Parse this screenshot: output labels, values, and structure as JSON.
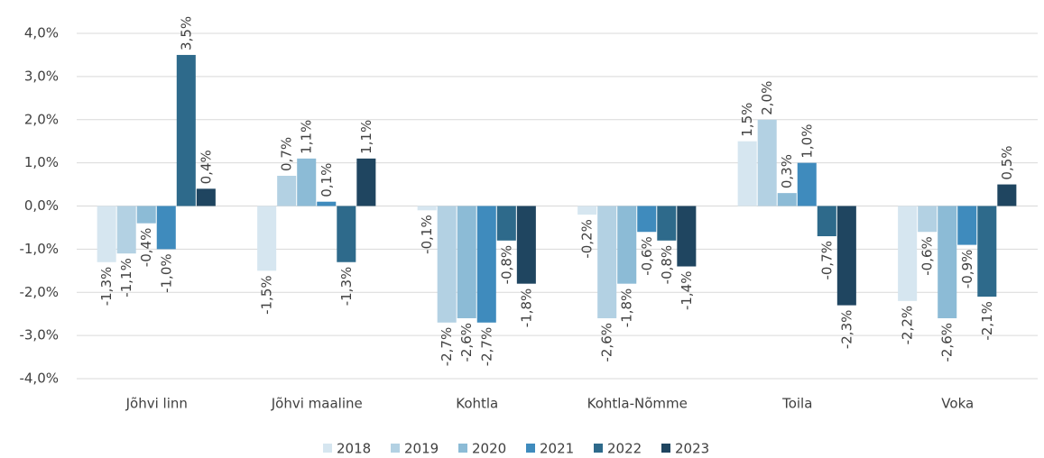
{
  "chart_data": {
    "type": "bar",
    "categories": [
      "Jõhvi linn",
      "Jõhvi maaline",
      "Kohtla",
      "Kohtla-Nõmme",
      "Toila",
      "Voka"
    ],
    "series": [
      {
        "name": "2018",
        "color": "#d6e6f0",
        "values": [
          -1.3,
          -1.5,
          -0.1,
          -0.2,
          1.5,
          -2.2
        ],
        "value_labels": [
          "-1,3%",
          "-1,5%",
          "-0,1%",
          "-0,2%",
          "1,5%",
          "-2,2%"
        ]
      },
      {
        "name": "2019",
        "color": "#b3d1e3",
        "values": [
          -1.1,
          0.7,
          -2.7,
          -2.6,
          2.0,
          -0.6
        ],
        "value_labels": [
          "-1,1%",
          "0,7%",
          "-2,7%",
          "-2,6%",
          "2,0%",
          "-0,6%"
        ]
      },
      {
        "name": "2020",
        "color": "#8cbbd6",
        "values": [
          -0.4,
          1.1,
          -2.6,
          -1.8,
          0.3,
          -2.6
        ],
        "value_labels": [
          "-0,4%",
          "1,1%",
          "-2,6%",
          "-1,8%",
          "0,3%",
          "-2,6%"
        ]
      },
      {
        "name": "2021",
        "color": "#3f8bbd",
        "values": [
          -1.0,
          0.1,
          -2.7,
          -0.6,
          1.0,
          -0.9
        ],
        "value_labels": [
          "-1,0%",
          "0,1%",
          "-2,7%",
          "-0,6%",
          "1,0%",
          "-0,9%"
        ]
      },
      {
        "name": "2022",
        "color": "#2e6a8b",
        "values": [
          3.5,
          -1.3,
          -0.8,
          -0.8,
          -0.7,
          -2.1
        ],
        "value_labels": [
          "3,5%",
          "-1,3%",
          "-0,8%",
          "-0,8%",
          "-0,7%",
          "-2,1%"
        ]
      },
      {
        "name": "2023",
        "color": "#1f4560",
        "values": [
          0.4,
          1.1,
          -1.8,
          -1.4,
          -2.3,
          0.5
        ],
        "value_labels": [
          "0,4%",
          "1,1%",
          "-1,8%",
          "-1,4%",
          "-2,3%",
          "0,5%"
        ]
      }
    ],
    "ylim": [
      -4,
      4
    ],
    "yticks": [
      {
        "value": -4,
        "label": "-4,0%"
      },
      {
        "value": -3,
        "label": "-3,0%"
      },
      {
        "value": -2,
        "label": "-2,0%"
      },
      {
        "value": -1,
        "label": "-1,0%"
      },
      {
        "value": 0,
        "label": "0,0%"
      },
      {
        "value": 1,
        "label": "1,0%"
      },
      {
        "value": 2,
        "label": "2,0%"
      },
      {
        "value": 3,
        "label": "3,0%"
      },
      {
        "value": 4,
        "label": "4,0%"
      }
    ],
    "grid": true,
    "legend": "bottom"
  }
}
